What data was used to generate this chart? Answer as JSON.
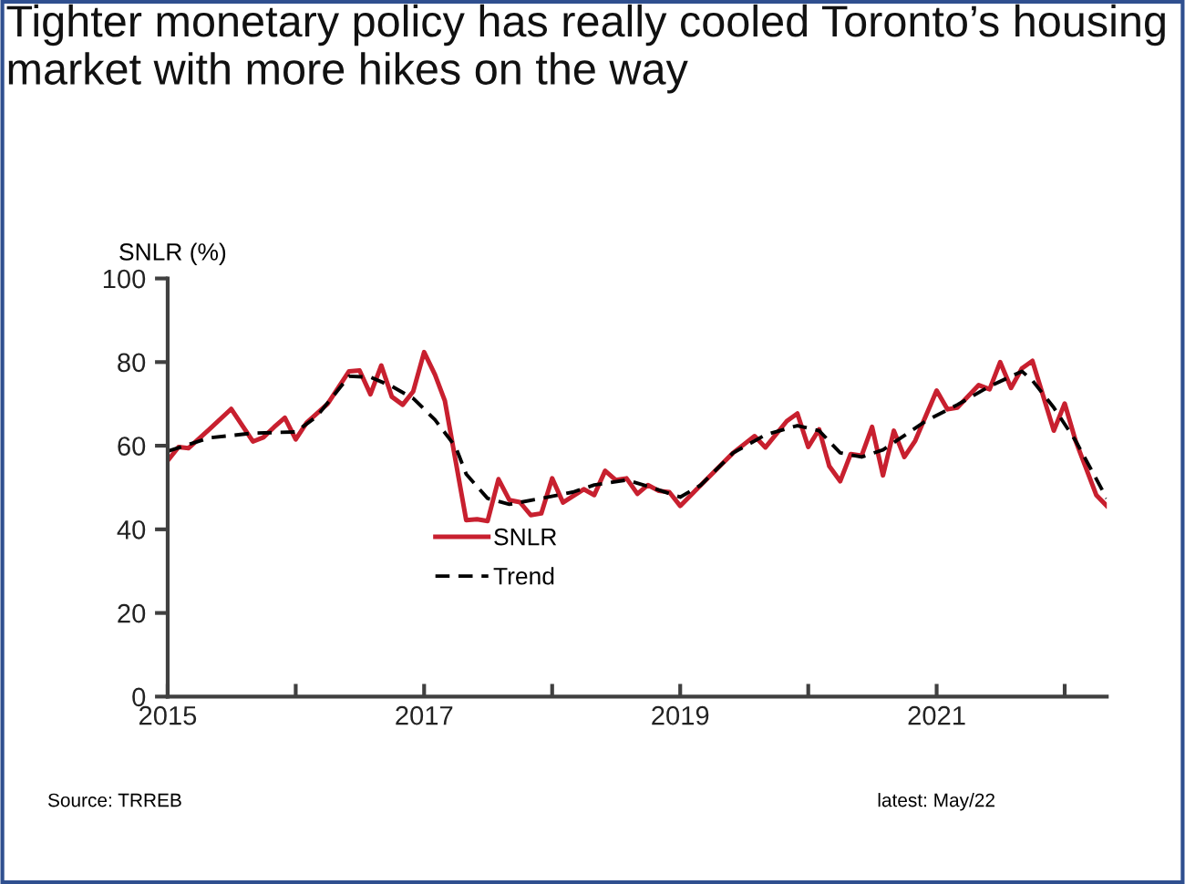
{
  "chart_data": {
    "type": "line",
    "title": "Tighter monetary policy has really cooled Toronto’s housing market with more hikes on the way",
    "ylabel": "SNLR (%)",
    "series": [
      {
        "name": "SNLR",
        "color": "#c8202f",
        "line_style": "solid",
        "x": [
          "2015-01",
          "2015-02",
          "2015-03",
          "2015-05",
          "2015-07",
          "2015-09",
          "2015-10",
          "2015-11",
          "2015-12",
          "2016-01",
          "2016-02",
          "2016-04",
          "2016-06",
          "2016-07",
          "2016-08",
          "2016-09",
          "2016-10",
          "2016-11",
          "2016-12",
          "2017-01",
          "2017-02",
          "2017-03",
          "2017-05",
          "2017-06",
          "2017-07",
          "2017-08",
          "2017-09",
          "2017-10",
          "2017-11",
          "2017-12",
          "2018-01",
          "2018-02",
          "2018-04",
          "2018-05",
          "2018-06",
          "2018-07",
          "2018-08",
          "2018-09",
          "2018-10",
          "2018-11",
          "2018-12",
          "2019-01",
          "2019-03",
          "2019-06",
          "2019-08",
          "2019-09",
          "2019-11",
          "2019-12",
          "2020-01",
          "2020-02",
          "2020-03",
          "2020-04",
          "2020-05",
          "2020-06",
          "2020-07",
          "2020-08",
          "2020-09",
          "2020-10",
          "2020-11",
          "2021-01",
          "2021-02",
          "2021-03",
          "2021-05",
          "2021-06",
          "2021-07",
          "2021-08",
          "2021-09",
          "2021-10",
          "2021-12",
          "2022-01",
          "2022-02",
          "2022-04",
          "2022-05"
        ],
        "values": [
          56.4,
          59.7,
          59.4,
          64,
          68.8,
          61,
          62,
          64.5,
          66.7,
          61.5,
          65.5,
          70,
          77.8,
          78,
          72.3,
          79.2,
          71.7,
          69.8,
          73,
          82.4,
          77,
          70.8,
          42.2,
          42.4,
          42,
          52,
          47,
          46.5,
          43.4,
          43.8,
          52.2,
          46.4,
          49.6,
          48.2,
          54,
          51.8,
          52.2,
          48.5,
          50.6,
          49.2,
          48.9,
          45.6,
          50.6,
          58.3,
          62.3,
          59.6,
          65.9,
          67.7,
          59.7,
          63.9,
          55.1,
          51.5,
          58,
          57.6,
          64.5,
          52.9,
          63.6,
          57.3,
          61.2,
          73.2,
          68.7,
          69.1,
          74.5,
          73.5,
          80,
          73.8,
          78.5,
          80.3,
          63.6,
          70.1,
          61.2,
          48.2,
          45.6
        ]
      },
      {
        "name": "Trend",
        "color": "#000000",
        "line_style": "dashed",
        "x": [
          "2015-01",
          "2015-05",
          "2015-09",
          "2016-01",
          "2016-03",
          "2016-06",
          "2016-08",
          "2016-10",
          "2016-12",
          "2017-02",
          "2017-04",
          "2017-05",
          "2017-07",
          "2017-09",
          "2017-12",
          "2018-03",
          "2018-05",
          "2018-08",
          "2018-10",
          "2019-01",
          "2019-03",
          "2019-06",
          "2019-09",
          "2019-12",
          "2020-02",
          "2020-04",
          "2020-06",
          "2020-08",
          "2020-12",
          "2021-03",
          "2021-06",
          "2021-09",
          "2021-10",
          "2021-12",
          "2022-02",
          "2022-05"
        ],
        "values": [
          58.7,
          61.9,
          63,
          63.3,
          67,
          76.6,
          76.4,
          74.2,
          71.3,
          66.2,
          59.7,
          53.2,
          47.4,
          46,
          47.4,
          48.9,
          50.6,
          51.8,
          50.3,
          47.7,
          50.6,
          58.3,
          62.6,
          64.8,
          63.6,
          58.3,
          57.3,
          59,
          65.9,
          69.8,
          74.2,
          77.8,
          75.6,
          69.1,
          61.2,
          47.4
        ]
      }
    ],
    "xlim": [
      "2015-01",
      "2022-05"
    ],
    "xticks": [
      {
        "value": "2015-01",
        "label": "2015"
      },
      {
        "value": "2016-01",
        "label": null
      },
      {
        "value": "2017-01",
        "label": "2017"
      },
      {
        "value": "2018-01",
        "label": null
      },
      {
        "value": "2019-01",
        "label": "2019"
      },
      {
        "value": "2020-01",
        "label": null
      },
      {
        "value": "2021-01",
        "label": "2021"
      },
      {
        "value": "2022-01",
        "label": null
      }
    ],
    "ylim": [
      0,
      100
    ],
    "yticks": [
      0,
      20,
      40,
      60,
      80,
      100
    ],
    "grid": false,
    "legend": "center",
    "marker": "none",
    "annotations": [
      "Source: TRREB",
      "latest: May/22"
    ]
  }
}
